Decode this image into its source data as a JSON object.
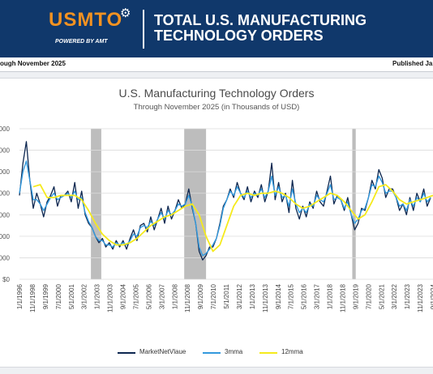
{
  "header": {
    "logo_text": "USMTO",
    "logo_sub": "POWERED BY AMT",
    "title_line1": "TOTAL U.S. MANUFACTURING",
    "title_line2": "TECHNOLOGY ORDERS"
  },
  "subbar": {
    "left": "ough November 2025",
    "right": "Published Ja"
  },
  "colors": {
    "navy": "#10386b",
    "orange": "#f39221",
    "market": "#0d2750",
    "mma3": "#3399dd",
    "mma12": "#f5ea1c",
    "recession": "#bdbdbd"
  },
  "chart_data": {
    "type": "line",
    "title": "U.S. Manufacturing Technology Orders",
    "subtitle": "Through November 2025 (in Thousands of USD)",
    "y_tick_labels": [
      "$0",
      "000",
      "000",
      "000",
      "000",
      "000",
      "000",
      "000"
    ],
    "x_tick_labels": [
      "1/1/1996",
      "11/1/1998",
      "9/1/1999",
      "7/1/2000",
      "5/1/2001",
      "3/1/2002",
      "1/1/2003",
      "11/1/2003",
      "9/1/2004",
      "7/1/2005",
      "5/1/2006",
      "3/1/2007",
      "1/1/2008",
      "11/1/2008",
      "9/1/2009",
      "7/1/2010",
      "5/1/2011",
      "3/1/2012",
      "1/1/2013",
      "11/1/2013",
      "9/1/2014",
      "7/1/2015",
      "5/1/2016",
      "3/1/2017",
      "1/1/2018",
      "11/1/2018",
      "9/1/2019",
      "7/1/2020",
      "5/1/2021",
      "3/1/2022",
      "1/1/2023",
      "11/1/2023",
      "9/1/2024"
    ],
    "x_range": [
      1996.0,
      2025.92
    ],
    "y_range": [
      0,
      7
    ],
    "grid": "horizontal",
    "legend_position": "bottom",
    "recessions": [
      [
        2001.17,
        2001.92
      ],
      [
        2007.92,
        2009.5
      ],
      [
        2020.08,
        2020.33
      ]
    ],
    "series": [
      {
        "name": "MarketNetVlaue",
        "x": [
          1996.0,
          1996.25,
          1996.5,
          1996.75,
          1997.0,
          1997.25,
          1997.5,
          1997.75,
          1998.0,
          1998.25,
          1998.5,
          1998.75,
          1999.0,
          1999.25,
          1999.5,
          1999.75,
          2000.0,
          2000.25,
          2000.5,
          2000.75,
          2001.0,
          2001.25,
          2001.5,
          2001.75,
          2002.0,
          2002.25,
          2002.5,
          2002.75,
          2003.0,
          2003.25,
          2003.5,
          2003.75,
          2004.0,
          2004.25,
          2004.5,
          2004.75,
          2005.0,
          2005.25,
          2005.5,
          2005.75,
          2006.0,
          2006.25,
          2006.5,
          2006.75,
          2007.0,
          2007.25,
          2007.5,
          2007.75,
          2008.0,
          2008.25,
          2008.5,
          2008.75,
          2009.0,
          2009.25,
          2009.5,
          2009.75,
          2010.0,
          2010.25,
          2010.5,
          2010.75,
          2011.0,
          2011.25,
          2011.5,
          2011.75,
          2012.0,
          2012.25,
          2012.5,
          2012.75,
          2013.0,
          2013.25,
          2013.5,
          2013.75,
          2014.0,
          2014.25,
          2014.5,
          2014.75,
          2015.0,
          2015.25,
          2015.5,
          2015.75,
          2016.0,
          2016.25,
          2016.5,
          2016.75,
          2017.0,
          2017.25,
          2017.5,
          2017.75,
          2018.0,
          2018.25,
          2018.5,
          2018.75,
          2019.0,
          2019.25,
          2019.5,
          2019.75,
          2020.0,
          2020.25,
          2020.5,
          2020.75,
          2021.0,
          2021.25,
          2021.5,
          2021.75,
          2022.0,
          2022.25,
          2022.5,
          2022.75,
          2023.0,
          2023.25,
          2023.5,
          2023.75,
          2024.0,
          2024.25,
          2024.5,
          2024.75,
          2025.0,
          2025.25,
          2025.5,
          2025.75
        ],
        "y": [
          3.9,
          5.4,
          6.4,
          4.6,
          3.3,
          4.0,
          3.5,
          2.9,
          3.6,
          3.9,
          4.3,
          3.4,
          3.9,
          3.9,
          4.1,
          3.6,
          4.5,
          3.3,
          4.1,
          3.0,
          2.6,
          2.4,
          2.0,
          1.7,
          1.9,
          1.5,
          1.7,
          1.4,
          1.8,
          1.5,
          1.8,
          1.4,
          1.9,
          2.3,
          1.8,
          2.5,
          2.6,
          2.2,
          2.9,
          2.3,
          2.8,
          3.3,
          2.6,
          3.4,
          2.8,
          3.2,
          3.7,
          3.3,
          3.5,
          4.2,
          3.3,
          2.6,
          1.3,
          0.9,
          1.1,
          1.5,
          1.5,
          1.9,
          2.6,
          3.4,
          3.7,
          4.2,
          3.8,
          4.5,
          4.0,
          3.7,
          4.3,
          3.6,
          4.1,
          3.8,
          4.4,
          3.6,
          4.1,
          5.4,
          3.7,
          4.5,
          3.6,
          4.0,
          3.1,
          4.6,
          3.3,
          2.8,
          3.4,
          2.9,
          3.6,
          3.3,
          4.1,
          3.6,
          3.4,
          4.1,
          4.8,
          3.5,
          3.9,
          3.7,
          3.2,
          3.8,
          3.0,
          2.3,
          2.6,
          3.3,
          3.2,
          3.8,
          4.6,
          4.2,
          5.1,
          4.7,
          3.8,
          4.2,
          4.2,
          3.8,
          3.2,
          3.5,
          3.0,
          3.8,
          3.2,
          4.0,
          3.6,
          4.2,
          3.4,
          3.8
        ]
      },
      {
        "name": "3mma",
        "x": [
          1996.0,
          1996.25,
          1996.5,
          1996.75,
          1997.0,
          1997.25,
          1997.5,
          1997.75,
          1998.0,
          1998.25,
          1998.5,
          1998.75,
          1999.0,
          1999.25,
          1999.5,
          1999.75,
          2000.0,
          2000.25,
          2000.5,
          2000.75,
          2001.0,
          2001.25,
          2001.5,
          2001.75,
          2002.0,
          2002.25,
          2002.5,
          2002.75,
          2003.0,
          2003.25,
          2003.5,
          2003.75,
          2004.0,
          2004.25,
          2004.5,
          2004.75,
          2005.0,
          2005.25,
          2005.5,
          2005.75,
          2006.0,
          2006.25,
          2006.5,
          2006.75,
          2007.0,
          2007.25,
          2007.5,
          2007.75,
          2008.0,
          2008.25,
          2008.5,
          2008.75,
          2009.0,
          2009.25,
          2009.5,
          2009.75,
          2010.0,
          2010.25,
          2010.5,
          2010.75,
          2011.0,
          2011.25,
          2011.5,
          2011.75,
          2012.0,
          2012.25,
          2012.5,
          2012.75,
          2013.0,
          2013.25,
          2013.5,
          2013.75,
          2014.0,
          2014.25,
          2014.5,
          2014.75,
          2015.0,
          2015.25,
          2015.5,
          2015.75,
          2016.0,
          2016.25,
          2016.5,
          2016.75,
          2017.0,
          2017.25,
          2017.5,
          2017.75,
          2018.0,
          2018.25,
          2018.5,
          2018.75,
          2019.0,
          2019.25,
          2019.5,
          2019.75,
          2020.0,
          2020.25,
          2020.5,
          2020.75,
          2021.0,
          2021.25,
          2021.5,
          2021.75,
          2022.0,
          2022.25,
          2022.5,
          2022.75,
          2023.0,
          2023.25,
          2023.5,
          2023.75,
          2024.0,
          2024.25,
          2024.5,
          2024.75,
          2025.0,
          2025.25,
          2025.5,
          2025.75
        ],
        "y": [
          4.0,
          5.0,
          5.5,
          4.6,
          3.7,
          3.7,
          3.5,
          3.2,
          3.5,
          3.8,
          4.0,
          3.7,
          3.8,
          3.9,
          4.0,
          3.8,
          4.1,
          3.7,
          3.8,
          3.1,
          2.7,
          2.4,
          2.0,
          1.8,
          1.8,
          1.6,
          1.6,
          1.5,
          1.7,
          1.6,
          1.7,
          1.6,
          1.8,
          2.1,
          2.0,
          2.4,
          2.5,
          2.4,
          2.7,
          2.5,
          2.8,
          3.1,
          2.8,
          3.2,
          3.0,
          3.2,
          3.5,
          3.4,
          3.5,
          3.9,
          3.4,
          2.6,
          1.5,
          1.1,
          1.2,
          1.4,
          1.6,
          1.9,
          2.5,
          3.3,
          3.7,
          4.1,
          3.9,
          4.3,
          4.0,
          3.8,
          4.1,
          3.8,
          4.0,
          3.9,
          4.2,
          3.8,
          4.1,
          4.8,
          3.9,
          4.3,
          3.8,
          3.9,
          3.4,
          4.2,
          3.5,
          3.1,
          3.3,
          3.1,
          3.5,
          3.4,
          3.9,
          3.7,
          3.6,
          4.0,
          4.4,
          3.7,
          3.8,
          3.7,
          3.3,
          3.6,
          3.0,
          2.6,
          2.8,
          3.2,
          3.3,
          3.8,
          4.4,
          4.3,
          4.8,
          4.5,
          4.0,
          4.1,
          4.1,
          3.8,
          3.4,
          3.5,
          3.2,
          3.7,
          3.4,
          3.8,
          3.6,
          4.0,
          3.6,
          3.8
        ]
      },
      {
        "name": "12mma",
        "x": [
          1997.0,
          1997.5,
          1998.0,
          1998.5,
          1999.0,
          1999.5,
          2000.0,
          2000.5,
          2001.0,
          2001.5,
          2002.0,
          2002.5,
          2003.0,
          2003.5,
          2004.0,
          2004.5,
          2005.0,
          2005.5,
          2006.0,
          2006.5,
          2007.0,
          2007.5,
          2008.0,
          2008.5,
          2009.0,
          2009.5,
          2010.0,
          2010.5,
          2011.0,
          2011.5,
          2012.0,
          2012.5,
          2013.0,
          2013.5,
          2014.0,
          2014.5,
          2015.0,
          2015.5,
          2016.0,
          2016.5,
          2017.0,
          2017.5,
          2018.0,
          2018.5,
          2019.0,
          2019.5,
          2020.0,
          2020.5,
          2021.0,
          2021.5,
          2022.0,
          2022.5,
          2023.0,
          2023.5,
          2024.0,
          2024.5,
          2025.0,
          2025.5,
          2025.92
        ],
        "y": [
          4.3,
          4.4,
          3.8,
          3.8,
          3.9,
          3.9,
          3.9,
          3.7,
          3.2,
          2.6,
          2.1,
          1.8,
          1.6,
          1.6,
          1.7,
          1.9,
          2.2,
          2.5,
          2.7,
          2.9,
          3.0,
          3.2,
          3.4,
          3.5,
          3.0,
          2.0,
          1.3,
          1.6,
          2.5,
          3.4,
          3.9,
          4.0,
          3.9,
          4.0,
          4.0,
          4.1,
          4.0,
          3.8,
          3.5,
          3.3,
          3.4,
          3.6,
          3.8,
          4.0,
          3.9,
          3.6,
          3.2,
          2.8,
          3.0,
          3.6,
          4.3,
          4.4,
          4.1,
          3.7,
          3.5,
          3.6,
          3.7,
          3.8,
          3.9
        ]
      }
    ]
  }
}
